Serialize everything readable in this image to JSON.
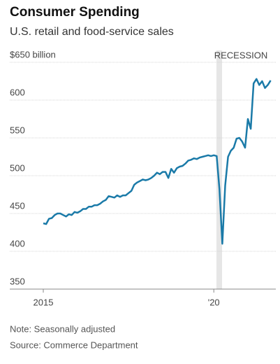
{
  "chart_data": {
    "type": "line",
    "title": "Consumer Spending",
    "subtitle": "U.S. retail and food-service sales",
    "recession_label": "RECESSION",
    "note": "Note: Seasonally adjusted",
    "source": "Source: Commerce Department",
    "categories": [
      "2015",
      null,
      null,
      null,
      null,
      null,
      null,
      null,
      null,
      null,
      null,
      null,
      null,
      null,
      null,
      null,
      null,
      null,
      null,
      null,
      null,
      null,
      null,
      null,
      null,
      null,
      null,
      null,
      null,
      null,
      null,
      null,
      null,
      null,
      null,
      null,
      null,
      null,
      null,
      null,
      null,
      null,
      null,
      null,
      null,
      null,
      null,
      null,
      null,
      null,
      null,
      null,
      null,
      null,
      null,
      null,
      null,
      null,
      null,
      null,
      "'20",
      null,
      null,
      null,
      null,
      null,
      null,
      null,
      null,
      null,
      null,
      null,
      null,
      null,
      null,
      null,
      null,
      null,
      null,
      null,
      null
    ],
    "series": [
      {
        "name": "Retail and food-service sales",
        "color": "#1a7aa8",
        "values": [
          437,
          436,
          443,
          444,
          448,
          450,
          450,
          448,
          446,
          449,
          448,
          452,
          451,
          453,
          456,
          456,
          459,
          459,
          461,
          461,
          463,
          466,
          468,
          473,
          472,
          471,
          474,
          472,
          474,
          474,
          477,
          480,
          488,
          491,
          493,
          495,
          494,
          495,
          497,
          500,
          504,
          502,
          505,
          505,
          497,
          509,
          504,
          510,
          512,
          513,
          516,
          520,
          521,
          523,
          522,
          524,
          525,
          526,
          527,
          526,
          527,
          526,
          482,
          410,
          487,
          525,
          533,
          537,
          549,
          550,
          545,
          537,
          575,
          562,
          622,
          628,
          620,
          625,
          616,
          620,
          626
        ]
      }
    ],
    "ylim": [
      350,
      650
    ],
    "yticks": [
      350,
      400,
      450,
      500,
      550,
      600,
      {
        "value": 650,
        "label": "$650 billion"
      }
    ],
    "grid": true
  }
}
